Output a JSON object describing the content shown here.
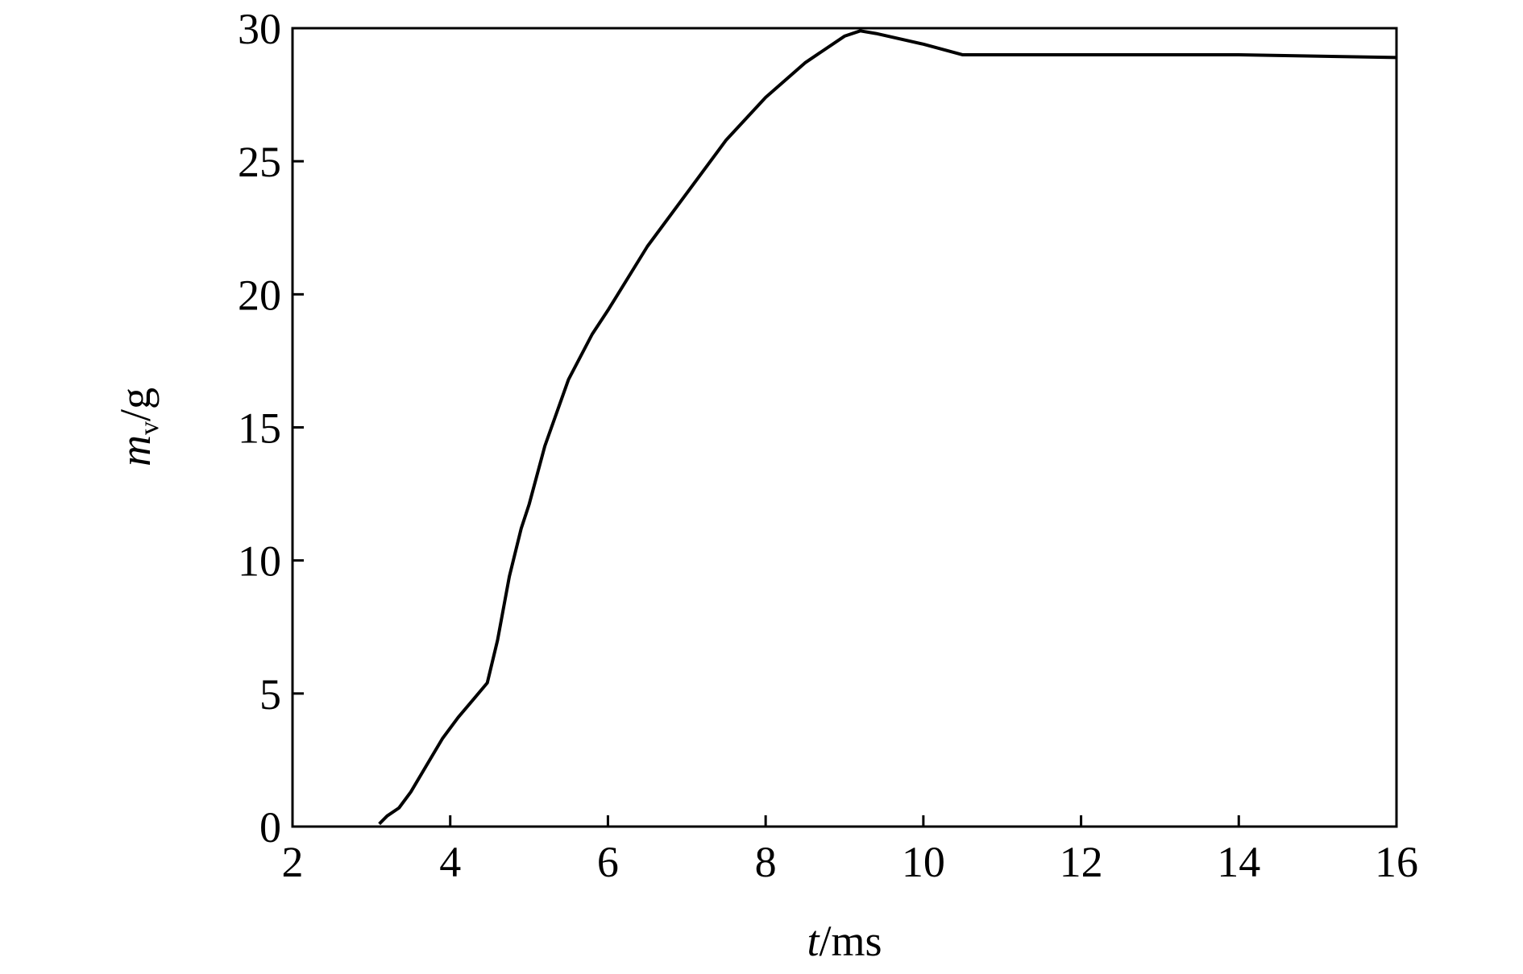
{
  "chart_data": {
    "type": "line",
    "xlabel": {
      "symbol": "t",
      "unit": "/ms"
    },
    "ylabel": {
      "symbol": "m",
      "subscript": "v",
      "unit": "/g"
    },
    "x": [
      3.1,
      3.2,
      3.35,
      3.5,
      3.7,
      3.9,
      4.1,
      4.3,
      4.47,
      4.6,
      4.75,
      4.9,
      5.0,
      5.2,
      5.5,
      5.8,
      6.0,
      6.5,
      7.0,
      7.5,
      8.0,
      8.5,
      9.0,
      9.2,
      9.4,
      10.0,
      10.5,
      12,
      14,
      16
    ],
    "series": [
      {
        "color": "#000000",
        "values": [
          0.1,
          0.4,
          0.7,
          1.3,
          2.3,
          3.3,
          4.1,
          4.8,
          5.4,
          7.0,
          9.4,
          11.2,
          12.1,
          14.3,
          16.8,
          18.5,
          19.4,
          21.8,
          23.8,
          25.8,
          27.4,
          28.7,
          29.7,
          29.9,
          29.8,
          29.4,
          29.0,
          29.0,
          29.0,
          28.9
        ]
      }
    ],
    "xlim": [
      2,
      16
    ],
    "xticks": [
      2,
      4,
      6,
      8,
      10,
      12,
      14,
      16
    ],
    "ylim": [
      0,
      30
    ],
    "yticks": [
      0,
      5,
      10,
      15,
      20,
      25,
      30
    ],
    "grid": false
  }
}
